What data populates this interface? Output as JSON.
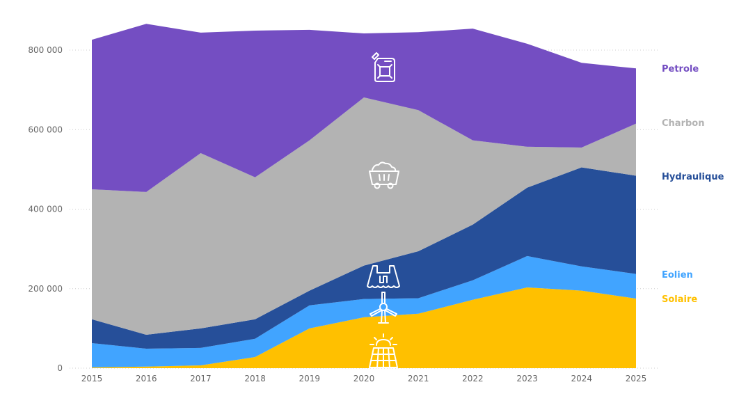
{
  "chart_data": {
    "type": "area",
    "stacked": true,
    "title": "",
    "xlabel": "",
    "ylabel": "",
    "x": [
      2015,
      2016,
      2017,
      2018,
      2019,
      2020,
      2021,
      2022,
      2023,
      2024,
      2025
    ],
    "x_tick_labels": [
      "2015",
      "2016",
      "2017",
      "2018",
      "2019",
      "2020",
      "2021",
      "2022",
      "2023",
      "2024",
      "2025"
    ],
    "ylim": [
      0,
      800000
    ],
    "y_ticks": [
      0,
      200000,
      400000,
      600000,
      800000
    ],
    "y_tick_labels": [
      "0",
      "200 000",
      "400 000",
      "600 000",
      "800 000"
    ],
    "grid": true,
    "legend_position": "right",
    "series": [
      {
        "name": "Solaire",
        "icon": "solar-panel-icon",
        "color": "#FFC000",
        "values": [
          2000,
          4000,
          7000,
          28000,
          100000,
          128000,
          137000,
          172000,
          203000,
          195000,
          175000
        ]
      },
      {
        "name": "Eolien",
        "icon": "wind-turbine-icon",
        "color": "#41A4FF",
        "values": [
          61000,
          45000,
          44000,
          46000,
          58000,
          46000,
          39000,
          49000,
          79000,
          61000,
          62000
        ]
      },
      {
        "name": "Hydraulique",
        "icon": "dam-icon",
        "color": "#264F99",
        "values": [
          60000,
          35000,
          49000,
          49000,
          37000,
          84000,
          118000,
          140000,
          172000,
          249000,
          247000
        ]
      },
      {
        "name": "Charbon",
        "icon": "coal-cart-icon",
        "color": "#B3B3B3",
        "values": [
          327000,
          359000,
          441000,
          357000,
          378000,
          423000,
          355000,
          212000,
          103000,
          50000,
          131000
        ]
      },
      {
        "name": "Petrole",
        "icon": "jerrycan-icon",
        "color": "#744EC2",
        "values": [
          376000,
          423000,
          303000,
          369000,
          278000,
          161000,
          196000,
          281000,
          259000,
          213000,
          139000
        ]
      }
    ]
  }
}
